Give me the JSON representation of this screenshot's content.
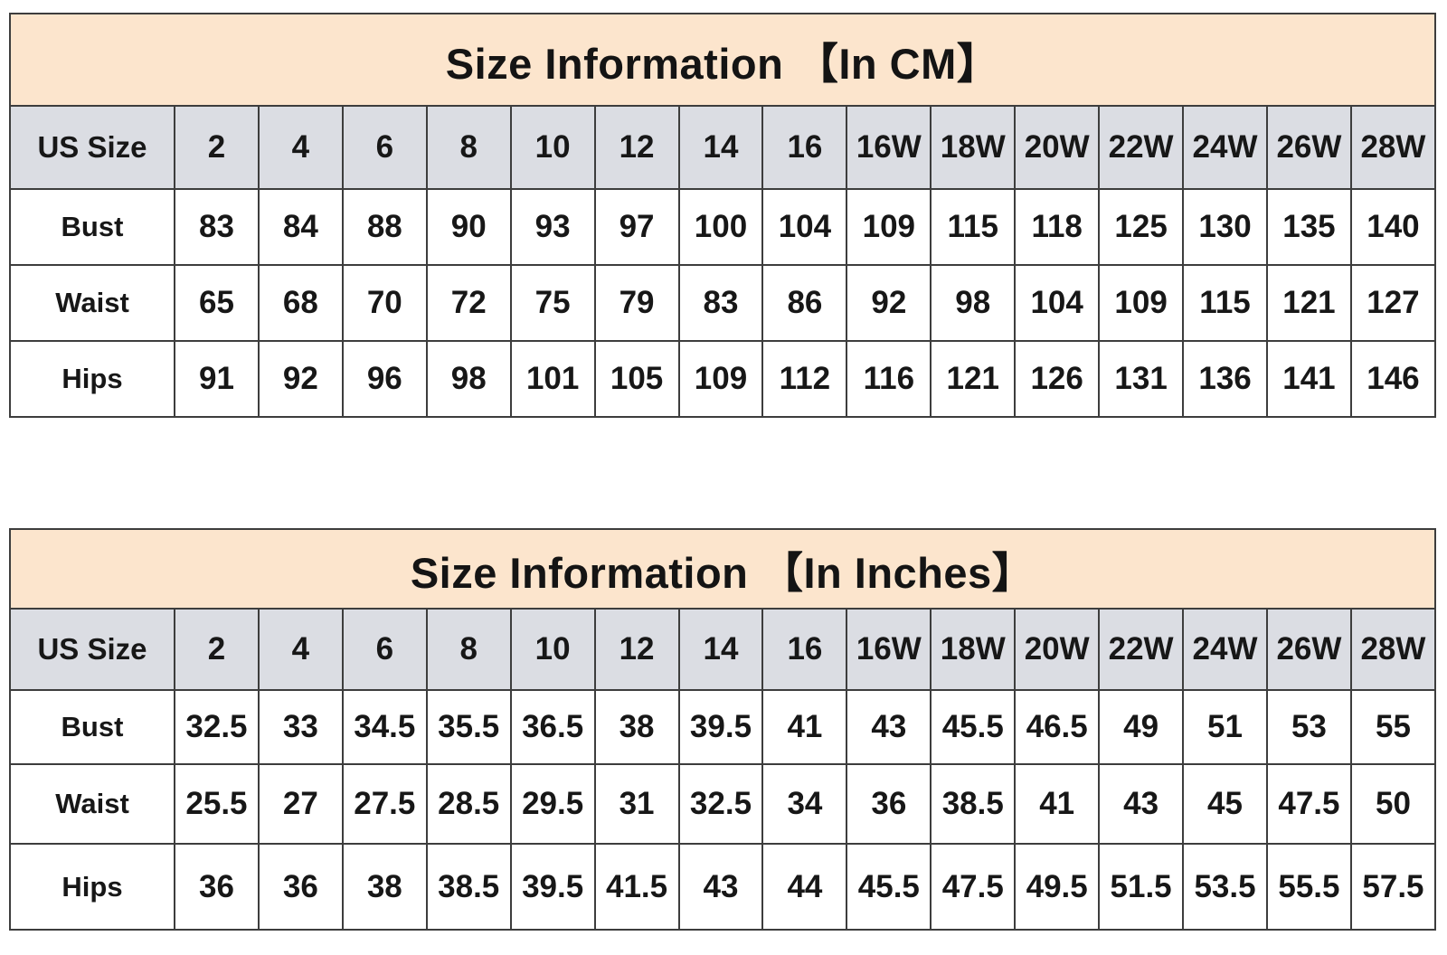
{
  "colors": {
    "title_band_bg": "#fce5cd",
    "header_row_bg": "#dbdde3",
    "cell_bg": "#ffffff",
    "border": "#3d3d3d",
    "text": "#171717"
  },
  "chart_data": [
    {
      "type": "table",
      "title": "Size Information 【In CM】",
      "unit": "cm",
      "columns": [
        "US Size",
        "2",
        "4",
        "6",
        "8",
        "10",
        "12",
        "14",
        "16",
        "16W",
        "18W",
        "20W",
        "22W",
        "24W",
        "26W",
        "28W"
      ],
      "rows": [
        [
          "Bust",
          83,
          84,
          88,
          90,
          93,
          97,
          100,
          104,
          109,
          115,
          118,
          125,
          130,
          135,
          140
        ],
        [
          "Waist",
          65,
          68,
          70,
          72,
          75,
          79,
          83,
          86,
          92,
          98,
          104,
          109,
          115,
          121,
          127
        ],
        [
          "Hips",
          91,
          92,
          96,
          98,
          101,
          105,
          109,
          112,
          116,
          121,
          126,
          131,
          136,
          141,
          146
        ]
      ]
    },
    {
      "type": "table",
      "title": "Size Information 【In Inches】",
      "unit": "inches",
      "columns": [
        "US Size",
        "2",
        "4",
        "6",
        "8",
        "10",
        "12",
        "14",
        "16",
        "16W",
        "18W",
        "20W",
        "22W",
        "24W",
        "26W",
        "28W"
      ],
      "rows": [
        [
          "Bust",
          32.5,
          33,
          34.5,
          35.5,
          36.5,
          38,
          39.5,
          41,
          43,
          45.5,
          46.5,
          49,
          51,
          53,
          55
        ],
        [
          "Waist",
          25.5,
          27,
          27.5,
          28.5,
          29.5,
          31,
          32.5,
          34,
          36,
          38.5,
          41,
          43,
          45,
          47.5,
          50
        ],
        [
          "Hips",
          36,
          36,
          38,
          38.5,
          39.5,
          41.5,
          43,
          44,
          45.5,
          47.5,
          49.5,
          51.5,
          53.5,
          55.5,
          57.5
        ]
      ]
    }
  ]
}
